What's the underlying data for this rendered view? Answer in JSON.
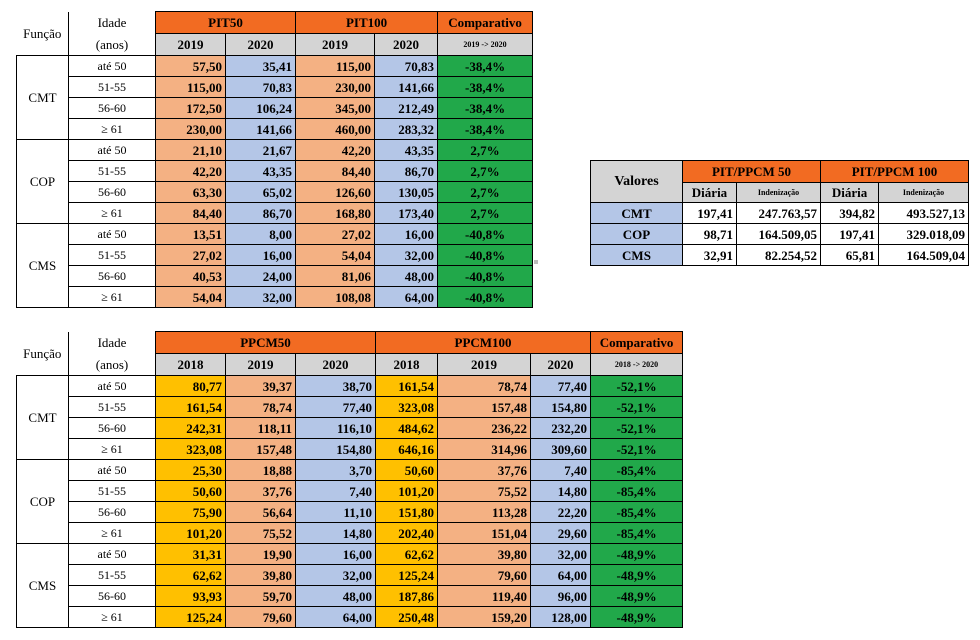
{
  "colors": {
    "orange": "#F26B22",
    "gray": "#D4D4D4",
    "peach": "#F4B183",
    "blue": "#B4C6E7",
    "yellow": "#FFC000",
    "green": "#21A84A"
  },
  "table1": {
    "funcao_label": "Função",
    "idade_label": "Idade",
    "anos_label": "(anos)",
    "groups": [
      "PIT50",
      "PIT100",
      "Comparativo"
    ],
    "years": [
      "2019",
      "2020",
      "2019",
      "2020"
    ],
    "comp_sub": "2019 -> 2020",
    "sections": [
      {
        "funcao": "CMT",
        "rows": [
          {
            "age": "até 50",
            "v": [
              "57,50",
              "35,41",
              "115,00",
              "70,83"
            ],
            "comp": "-38,4%"
          },
          {
            "age": "51-55",
            "v": [
              "115,00",
              "70,83",
              "230,00",
              "141,66"
            ],
            "comp": "-38,4%"
          },
          {
            "age": "56-60",
            "v": [
              "172,50",
              "106,24",
              "345,00",
              "212,49"
            ],
            "comp": "-38,4%"
          },
          {
            "age": "≥ 61",
            "v": [
              "230,00",
              "141,66",
              "460,00",
              "283,32"
            ],
            "comp": "-38,4%"
          }
        ]
      },
      {
        "funcao": "COP",
        "rows": [
          {
            "age": "até 50",
            "v": [
              "21,10",
              "21,67",
              "42,20",
              "43,35"
            ],
            "comp": "2,7%"
          },
          {
            "age": "51-55",
            "v": [
              "42,20",
              "43,35",
              "84,40",
              "86,70"
            ],
            "comp": "2,7%"
          },
          {
            "age": "56-60",
            "v": [
              "63,30",
              "65,02",
              "126,60",
              "130,05"
            ],
            "comp": "2,7%"
          },
          {
            "age": "≥ 61",
            "v": [
              "84,40",
              "86,70",
              "168,80",
              "173,40"
            ],
            "comp": "2,7%"
          }
        ]
      },
      {
        "funcao": "CMS",
        "rows": [
          {
            "age": "até 50",
            "v": [
              "13,51",
              "8,00",
              "27,02",
              "16,00"
            ],
            "comp": "-40,8%"
          },
          {
            "age": "51-55",
            "v": [
              "27,02",
              "16,00",
              "54,04",
              "32,00"
            ],
            "comp": "-40,8%"
          },
          {
            "age": "56-60",
            "v": [
              "40,53",
              "24,00",
              "81,06",
              "48,00"
            ],
            "comp": "-40,8%"
          },
          {
            "age": "≥ 61",
            "v": [
              "54,04",
              "32,00",
              "108,08",
              "64,00"
            ],
            "comp": "-40,8%"
          }
        ]
      }
    ]
  },
  "table2": {
    "funcao_label": "Função",
    "idade_label": "Idade",
    "anos_label": "(anos)",
    "groups": [
      "PPCM50",
      "PPCM100",
      "Comparativo"
    ],
    "years": [
      "2018",
      "2019",
      "2020",
      "2018",
      "2019",
      "2020"
    ],
    "comp_sub": "2018 -> 2020",
    "sections": [
      {
        "funcao": "CMT",
        "rows": [
          {
            "age": "até 50",
            "v": [
              "80,77",
              "39,37",
              "38,70",
              "161,54",
              "78,74",
              "77,40"
            ],
            "comp": "-52,1%"
          },
          {
            "age": "51-55",
            "v": [
              "161,54",
              "78,74",
              "77,40",
              "323,08",
              "157,48",
              "154,80"
            ],
            "comp": "-52,1%"
          },
          {
            "age": "56-60",
            "v": [
              "242,31",
              "118,11",
              "116,10",
              "484,62",
              "236,22",
              "232,20"
            ],
            "comp": "-52,1%"
          },
          {
            "age": "≥ 61",
            "v": [
              "323,08",
              "157,48",
              "154,80",
              "646,16",
              "314,96",
              "309,60"
            ],
            "comp": "-52,1%"
          }
        ]
      },
      {
        "funcao": "COP",
        "rows": [
          {
            "age": "até 50",
            "v": [
              "25,30",
              "18,88",
              "3,70",
              "50,60",
              "37,76",
              "7,40"
            ],
            "comp": "-85,4%"
          },
          {
            "age": "51-55",
            "v": [
              "50,60",
              "37,76",
              "7,40",
              "101,20",
              "75,52",
              "14,80"
            ],
            "comp": "-85,4%"
          },
          {
            "age": "56-60",
            "v": [
              "75,90",
              "56,64",
              "11,10",
              "151,80",
              "113,28",
              "22,20"
            ],
            "comp": "-85,4%"
          },
          {
            "age": "≥ 61",
            "v": [
              "101,20",
              "75,52",
              "14,80",
              "202,40",
              "151,04",
              "29,60"
            ],
            "comp": "-85,4%"
          }
        ]
      },
      {
        "funcao": "CMS",
        "rows": [
          {
            "age": "até 50",
            "v": [
              "31,31",
              "19,90",
              "16,00",
              "62,62",
              "39,80",
              "32,00"
            ],
            "comp": "-48,9%"
          },
          {
            "age": "51-55",
            "v": [
              "62,62",
              "39,80",
              "32,00",
              "125,24",
              "79,60",
              "64,00"
            ],
            "comp": "-48,9%"
          },
          {
            "age": "56-60",
            "v": [
              "93,93",
              "59,70",
              "48,00",
              "187,86",
              "119,40",
              "96,00"
            ],
            "comp": "-48,9%"
          },
          {
            "age": "≥ 61",
            "v": [
              "125,24",
              "79,60",
              "64,00",
              "250,48",
              "159,20",
              "128,00"
            ],
            "comp": "-48,9%"
          }
        ]
      }
    ]
  },
  "table3": {
    "valores_label": "Valores",
    "groups": [
      "PIT/PPCM 50",
      "PIT/PPCM 100"
    ],
    "diaria_label": "Diária",
    "indenizacao_label": "Indenização",
    "rows": [
      {
        "label": "CMT",
        "v": [
          "197,41",
          "247.763,57",
          "394,82",
          "493.527,13"
        ]
      },
      {
        "label": "COP",
        "v": [
          "98,71",
          "164.509,05",
          "197,41",
          "329.018,09"
        ]
      },
      {
        "label": "CMS",
        "v": [
          "32,91",
          "82.254,52",
          "65,81",
          "164.509,04"
        ]
      }
    ]
  }
}
